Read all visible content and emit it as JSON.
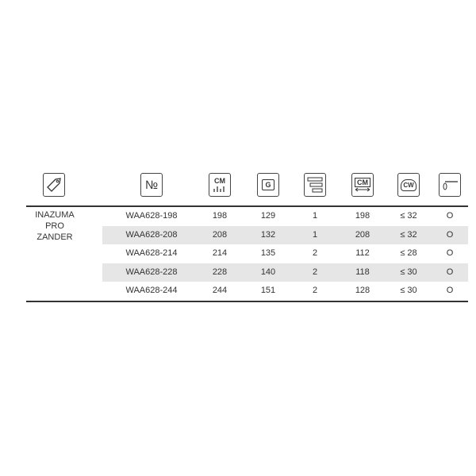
{
  "header_icons": [
    {
      "name": "tag-icon",
      "col": "model"
    },
    {
      "name": "number-icon",
      "label": "№"
    },
    {
      "name": "length-icon",
      "label": "CM"
    },
    {
      "name": "weight-icon",
      "label": "G"
    },
    {
      "name": "sections-icon"
    },
    {
      "name": "transport-length-icon",
      "label": "CM"
    },
    {
      "name": "casting-weight-icon",
      "label": "CW"
    },
    {
      "name": "line-guide-icon"
    }
  ],
  "model": "INAZUMA PRO ZANDER",
  "rows": [
    {
      "code": "WAA628-198",
      "length": "198",
      "weight": "129",
      "sections": "1",
      "transport": "198",
      "cw": "≤ 32",
      "mark": "O"
    },
    {
      "code": "WAA628-208",
      "length": "208",
      "weight": "132",
      "sections": "1",
      "transport": "208",
      "cw": "≤ 32",
      "mark": "O"
    },
    {
      "code": "WAA628-214",
      "length": "214",
      "weight": "135",
      "sections": "2",
      "transport": "112",
      "cw": "≤ 28",
      "mark": "O"
    },
    {
      "code": "WAA628-228",
      "length": "228",
      "weight": "140",
      "sections": "2",
      "transport": "118",
      "cw": "≤ 30",
      "mark": "O"
    },
    {
      "code": "WAA628-244",
      "length": "244",
      "weight": "151",
      "sections": "2",
      "transport": "128",
      "cw": "≤ 30",
      "mark": "O"
    }
  ]
}
